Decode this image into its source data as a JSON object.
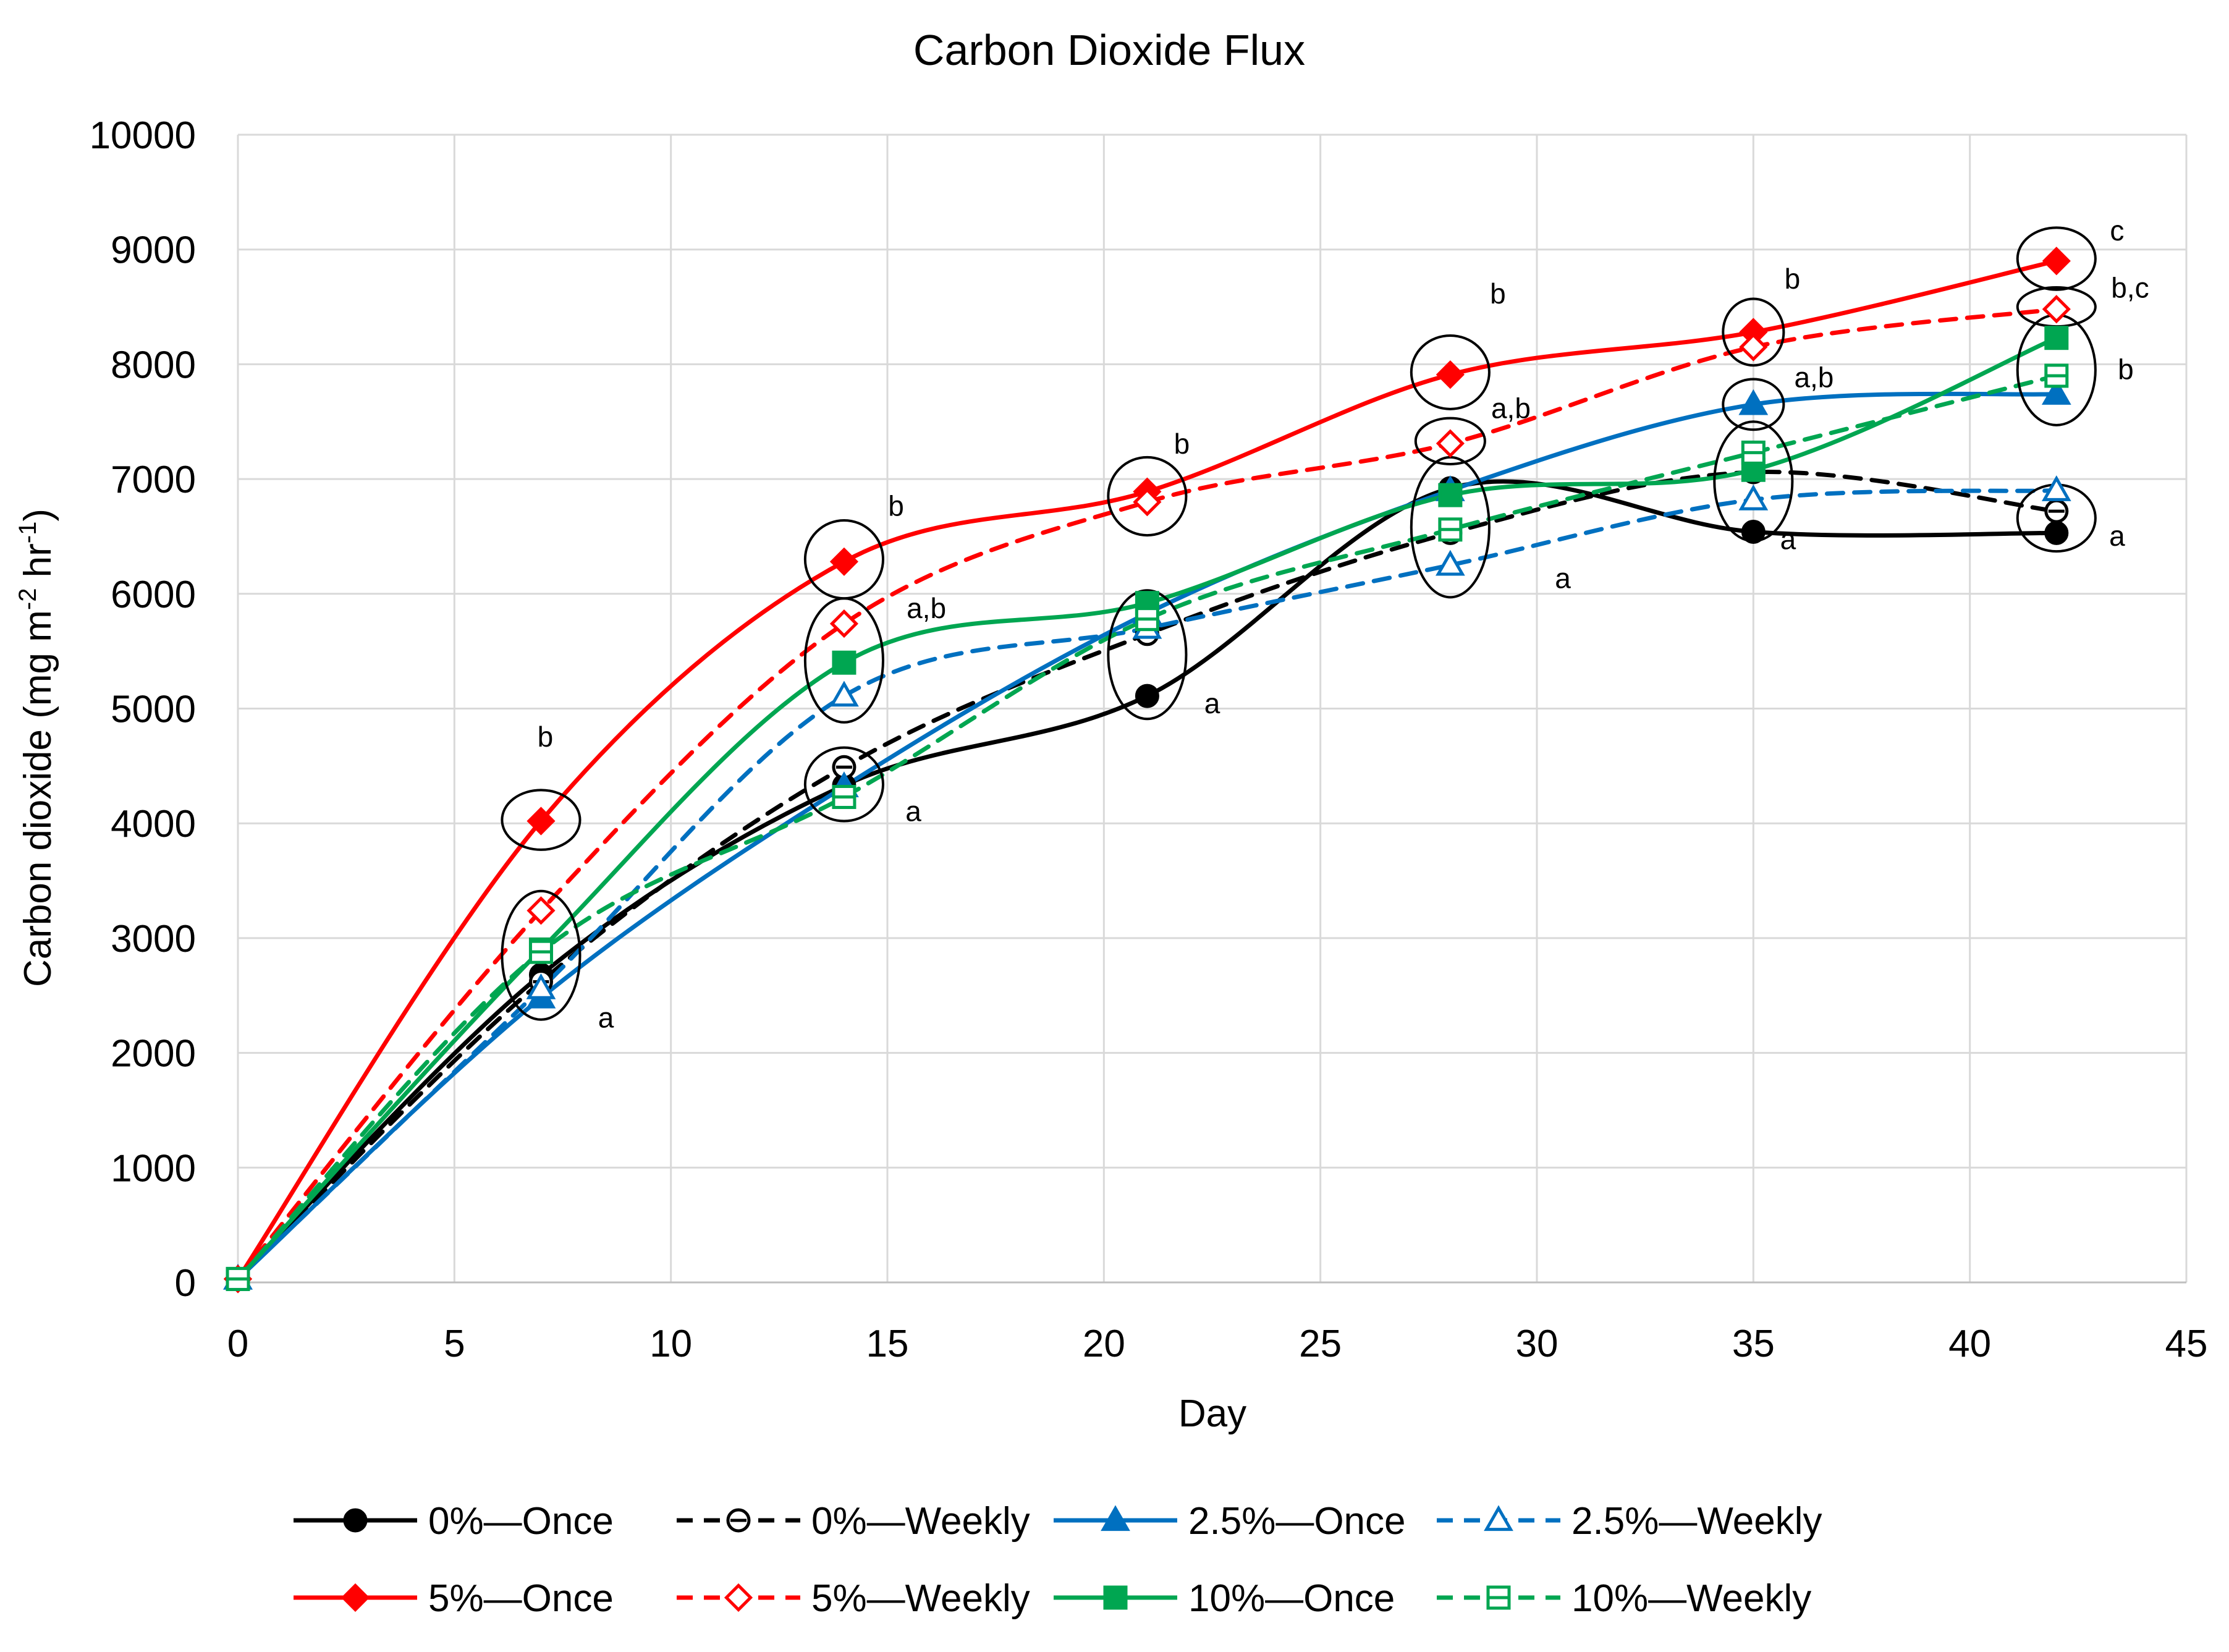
{
  "chart_data": {
    "type": "line",
    "title": "Carbon Dioxide Flux",
    "xlabel": "Day",
    "ylabel_parts": [
      "Carbon dioxide (mg m",
      "-2",
      " hr",
      "-1",
      ")"
    ],
    "xlim": [
      0,
      45
    ],
    "ylim": [
      0,
      10000
    ],
    "x_ticks": [
      0,
      5,
      10,
      15,
      20,
      25,
      30,
      35,
      40,
      45
    ],
    "y_ticks": [
      0,
      1000,
      2000,
      3000,
      4000,
      5000,
      6000,
      7000,
      8000,
      9000,
      10000
    ],
    "grid": true,
    "legend_position": "bottom",
    "x": [
      0,
      7,
      14,
      21,
      28,
      35,
      42
    ],
    "series": [
      {
        "name": "0%—Once",
        "color": "#000000",
        "dash": false,
        "marker": "circle",
        "filled": true,
        "values": [
          30,
          2680,
          4330,
          5110,
          6920,
          6540,
          6530
        ]
      },
      {
        "name": "0%—Weekly",
        "color": "#000000",
        "dash": true,
        "marker": "circle-line",
        "filled": false,
        "values": [
          30,
          2620,
          4490,
          5650,
          6530,
          7060,
          6720
        ]
      },
      {
        "name": "2.5%—Once",
        "color": "#0070c0",
        "dash": false,
        "marker": "triangle",
        "filled": true,
        "values": [
          30,
          2480,
          4320,
          5830,
          6900,
          7650,
          7740
        ]
      },
      {
        "name": "2.5%—Weekly",
        "color": "#0070c0",
        "dash": true,
        "marker": "triangle",
        "filled": false,
        "values": [
          30,
          2560,
          5110,
          5700,
          6250,
          6820,
          6900
        ]
      },
      {
        "name": "5%—Once",
        "color": "#ff0000",
        "dash": false,
        "marker": "diamond",
        "filled": true,
        "values": [
          30,
          4020,
          6280,
          6890,
          7910,
          8280,
          8900
        ]
      },
      {
        "name": "5%—Weekly",
        "color": "#ff0000",
        "dash": true,
        "marker": "diamond",
        "filled": false,
        "values": [
          30,
          3240,
          5740,
          6800,
          7310,
          8150,
          8480
        ]
      },
      {
        "name": "10%—Once",
        "color": "#00a651",
        "dash": false,
        "marker": "square",
        "filled": true,
        "values": [
          30,
          2900,
          5400,
          5920,
          6860,
          7080,
          8230
        ]
      },
      {
        "name": "10%—Weekly",
        "color": "#00a651",
        "dash": true,
        "marker": "square-line",
        "filled": false,
        "values": [
          30,
          2880,
          4230,
          5780,
          6560,
          7230,
          7900
        ]
      }
    ],
    "significance_groups": [
      {
        "x": 7,
        "y": 4030,
        "rx": 0.9,
        "ry": 260,
        "label": "b",
        "label_x": 7.1,
        "label_y": 4670
      },
      {
        "x": 7,
        "y": 2850,
        "rx": 0.9,
        "ry": 560,
        "label": "a",
        "label_x": 8.5,
        "label_y": 2220
      },
      {
        "x": 14,
        "y": 6300,
        "rx": 0.9,
        "ry": 340,
        "label": "b",
        "label_x": 15.2,
        "label_y": 6680
      },
      {
        "x": 14,
        "y": 5420,
        "rx": 0.9,
        "ry": 540,
        "label": "a,b",
        "label_x": 15.9,
        "label_y": 5790
      },
      {
        "x": 14,
        "y": 4340,
        "rx": 0.9,
        "ry": 320,
        "label": "a",
        "label_x": 15.6,
        "label_y": 4020
      },
      {
        "x": 21,
        "y": 6850,
        "rx": 0.9,
        "ry": 340,
        "label": "b",
        "label_x": 21.8,
        "label_y": 7220
      },
      {
        "x": 21,
        "y": 5470,
        "rx": 0.9,
        "ry": 560,
        "label": "a",
        "label_x": 22.5,
        "label_y": 4960
      },
      {
        "x": 28,
        "y": 7930,
        "rx": 0.9,
        "ry": 320,
        "label": "b",
        "label_x": 29.1,
        "label_y": 8530
      },
      {
        "x": 28,
        "y": 7330,
        "rx": 0.8,
        "ry": 200,
        "label": "a,b",
        "label_x": 29.4,
        "label_y": 7530
      },
      {
        "x": 28,
        "y": 6580,
        "rx": 0.9,
        "ry": 610,
        "label": "a",
        "label_x": 30.6,
        "label_y": 6050
      },
      {
        "x": 35,
        "y": 8280,
        "rx": 0.7,
        "ry": 290,
        "label": "b",
        "label_x": 35.9,
        "label_y": 8660
      },
      {
        "x": 35,
        "y": 7650,
        "rx": 0.7,
        "ry": 220,
        "label": "a,b",
        "label_x": 36.4,
        "label_y": 7800
      },
      {
        "x": 35,
        "y": 6980,
        "rx": 0.9,
        "ry": 520,
        "label": "a",
        "label_x": 35.8,
        "label_y": 6390
      },
      {
        "x": 42,
        "y": 8920,
        "rx": 0.9,
        "ry": 270,
        "label": "c",
        "label_x": 43.4,
        "label_y": 9080
      },
      {
        "x": 42,
        "y": 8500,
        "rx": 0.9,
        "ry": 170,
        "label": "b,c",
        "label_x": 43.7,
        "label_y": 8580
      },
      {
        "x": 42,
        "y": 7950,
        "rx": 0.9,
        "ry": 480,
        "label": "b",
        "label_x": 43.6,
        "label_y": 7870
      },
      {
        "x": 42,
        "y": 6660,
        "rx": 0.9,
        "ry": 290,
        "label": "a",
        "label_x": 43.4,
        "label_y": 6420
      }
    ]
  }
}
